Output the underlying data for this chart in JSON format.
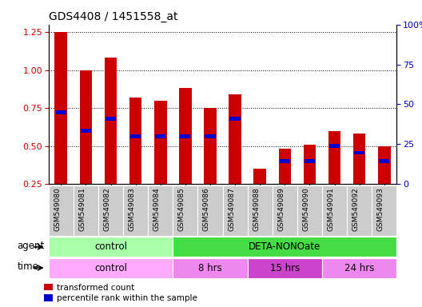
{
  "title": "GDS4408 / 1451558_at",
  "samples": [
    "GSM549080",
    "GSM549081",
    "GSM549082",
    "GSM549083",
    "GSM549084",
    "GSM549085",
    "GSM549086",
    "GSM549087",
    "GSM549088",
    "GSM549089",
    "GSM549090",
    "GSM549091",
    "GSM549092",
    "GSM549093"
  ],
  "red_values": [
    1.25,
    1.0,
    1.08,
    0.82,
    0.8,
    0.88,
    0.75,
    0.84,
    0.35,
    0.48,
    0.51,
    0.6,
    0.58,
    0.5
  ],
  "blue_values": [
    0.72,
    0.6,
    0.68,
    0.565,
    0.565,
    0.565,
    0.565,
    0.68,
    0.0,
    0.4,
    0.4,
    0.5,
    0.455,
    0.4
  ],
  "ylim_left": [
    0.25,
    1.3
  ],
  "ylim_right": [
    0,
    100
  ],
  "yticks_left": [
    0.25,
    0.5,
    0.75,
    1.0,
    1.25
  ],
  "yticks_right": [
    0,
    25,
    50,
    75,
    100
  ],
  "bar_color": "#cc0000",
  "blue_color": "#0000cc",
  "agent_row": [
    {
      "label": "control",
      "start": 0,
      "end": 5,
      "color": "#aaffaa"
    },
    {
      "label": "DETA-NONOate",
      "start": 5,
      "end": 14,
      "color": "#44dd44"
    }
  ],
  "time_row": [
    {
      "label": "control",
      "start": 0,
      "end": 5,
      "color": "#ffaaff"
    },
    {
      "label": "8 hrs",
      "start": 5,
      "end": 8,
      "color": "#ee88ee"
    },
    {
      "label": "15 hrs",
      "start": 8,
      "end": 11,
      "color": "#cc44cc"
    },
    {
      "label": "24 hrs",
      "start": 11,
      "end": 14,
      "color": "#ee88ee"
    }
  ],
  "legend_red": "transformed count",
  "legend_blue": "percentile rank within the sample",
  "bg_color": "#ffffff",
  "tick_label_bg": "#cccccc",
  "bar_width": 0.5
}
